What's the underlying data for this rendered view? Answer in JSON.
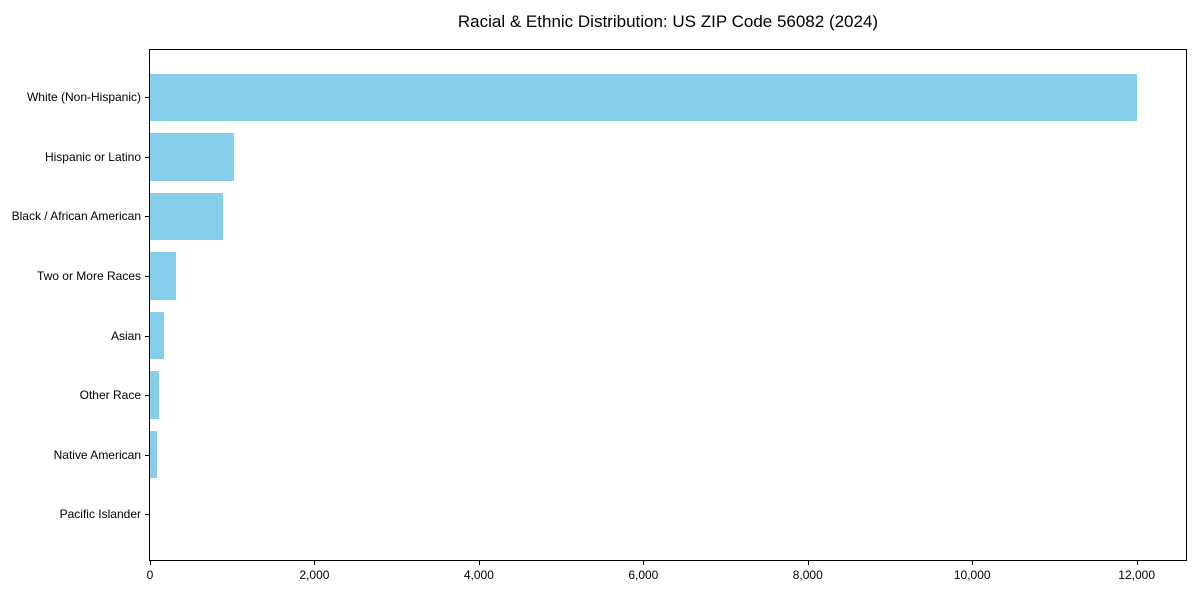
{
  "chart_data": {
    "type": "bar",
    "orientation": "horizontal",
    "title": "Racial & Ethnic Distribution: US ZIP Code 56082 (2024)",
    "categories": [
      "White (Non-Hispanic)",
      "Hispanic or Latino",
      "Black / African American",
      "Two or More Races",
      "Asian",
      "Other Race",
      "Native American",
      "Pacific Islander"
    ],
    "values": [
      12000,
      1020,
      890,
      320,
      175,
      105,
      85,
      0
    ],
    "xlabel": "",
    "ylabel": "",
    "xlim": [
      0,
      12600
    ],
    "x_ticks": [
      0,
      2000,
      4000,
      6000,
      8000,
      10000,
      12000
    ],
    "x_tick_labels": [
      "0",
      "2,000",
      "4,000",
      "6,000",
      "8,000",
      "10,000",
      "12,000"
    ],
    "grid": false,
    "legend": false,
    "bar_color": "#87CEEB",
    "background_color": "#FFFFFF",
    "spine_color": "#000000",
    "text_color": "#000000"
  }
}
